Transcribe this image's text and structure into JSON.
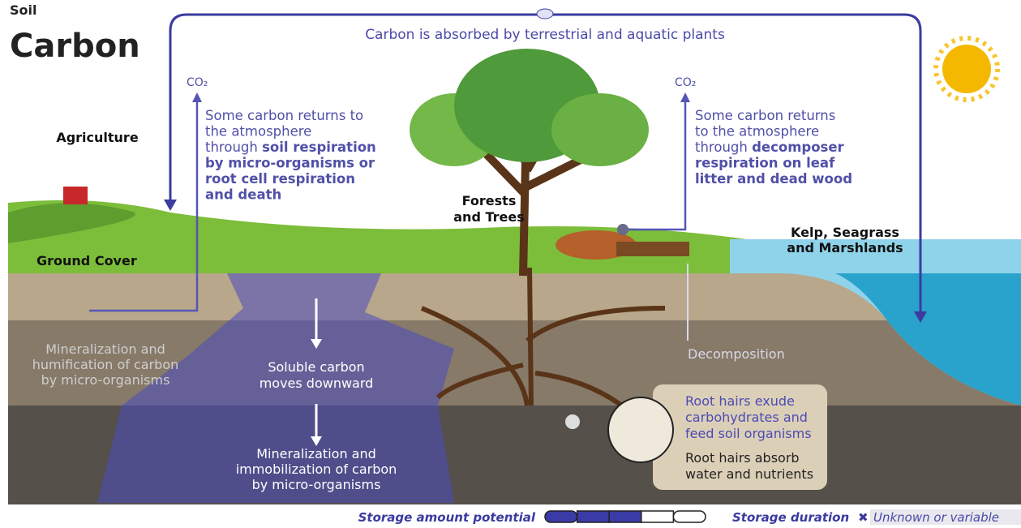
{
  "title": [
    "Soil",
    "Carbon"
  ],
  "top_flow": "Carbon is absorbed by terrestrial and aquatic plants",
  "co2_left": "CO₂",
  "co2_right": "CO₂",
  "left_note": [
    [
      {
        "text": "Some carbon returns to"
      }
    ],
    [
      {
        "text": "the atmosphere"
      }
    ],
    [
      {
        "text": "through "
      },
      {
        "text": "soil respiration",
        "bold": true
      }
    ],
    [
      {
        "text": "by micro-organisms or",
        "bold": true
      }
    ],
    [
      {
        "text": "root cell respiration",
        "bold": true
      }
    ],
    [
      {
        "text": "and death",
        "bold": true
      }
    ]
  ],
  "right_note": [
    [
      {
        "text": "Some carbon returns"
      }
    ],
    [
      {
        "text": "to the atmosphere"
      }
    ],
    [
      {
        "text": "through "
      },
      {
        "text": "decomposer",
        "bold": true
      }
    ],
    [
      {
        "text": "respiration on leaf",
        "bold": true
      }
    ],
    [
      {
        "text": "litter and dead wood",
        "bold": true
      }
    ]
  ],
  "agriculture": "Agriculture",
  "ground_cover": "Ground Cover",
  "forests": [
    "Forests",
    "and Trees"
  ],
  "kelp": [
    "Kelp, Seagrass",
    "and Marshlands"
  ],
  "humification": [
    "Mineralization and",
    "humification of carbon",
    "by micro-organisms"
  ],
  "soluble": [
    "Soluble carbon",
    "moves downward"
  ],
  "immobilization": [
    "Mineralization and",
    "immobilization of carbon",
    "by micro-organisms"
  ],
  "decomposition": "Decomposition",
  "root_exude": [
    "Root hairs exude",
    "carbohydrates and",
    "feed soil organisms"
  ],
  "root_absorb": [
    "Root hairs absorb",
    "water and nutrients"
  ],
  "legend": {
    "storage_amount": "Storage amount potential",
    "storage_amount_filled": 3,
    "storage_amount_total": 5,
    "storage_duration": "Storage duration",
    "duration_icon": "✖",
    "duration_value": "Unknown or variable"
  }
}
